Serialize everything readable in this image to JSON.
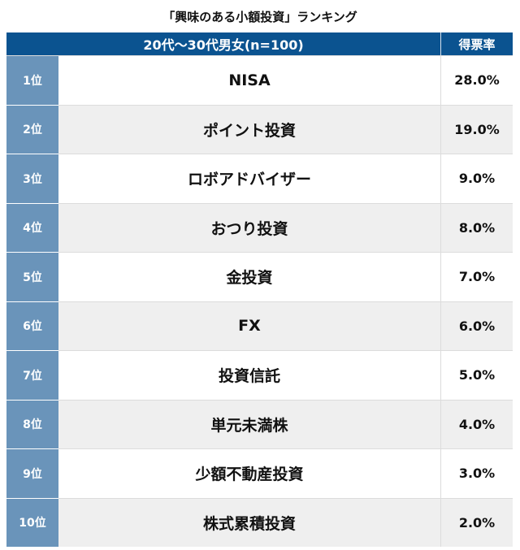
{
  "chart_data": {
    "type": "table",
    "title": "「興味のある小額投資」ランキング",
    "header": {
      "group": "20代～30代男女(n=100)",
      "value": "得票率"
    },
    "rows": [
      {
        "rank": "1位",
        "name": "NISA",
        "value": "28.0%"
      },
      {
        "rank": "2位",
        "name": "ポイント投資",
        "value": "19.0%"
      },
      {
        "rank": "3位",
        "name": "ロボアドバイザー",
        "value": "9.0%"
      },
      {
        "rank": "4位",
        "name": "おつり投資",
        "value": "8.0%"
      },
      {
        "rank": "5位",
        "name": "金投資",
        "value": "7.0%"
      },
      {
        "rank": "6位",
        "name": "FX",
        "value": "6.0%"
      },
      {
        "rank": "7位",
        "name": "投資信託",
        "value": "5.0%"
      },
      {
        "rank": "8位",
        "name": "単元未満株",
        "value": "4.0%"
      },
      {
        "rank": "9位",
        "name": "少額不動産投資",
        "value": "3.0%"
      },
      {
        "rank": "10位",
        "name": "株式累積投資",
        "value": "2.0%"
      }
    ],
    "colors": {
      "header": "#0b5390",
      "rank": "#6a94ba",
      "stripe": "#efefef"
    }
  }
}
